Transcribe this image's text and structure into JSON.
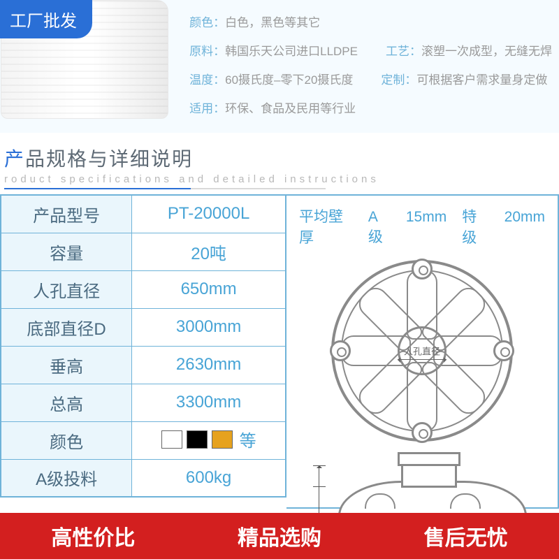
{
  "badge": {
    "text": "工厂批发"
  },
  "props": {
    "color": {
      "label": "颜色",
      "value": "白色，黑色等其它"
    },
    "material": {
      "label": "原料",
      "value": "韩国乐天公司进口LLDPE"
    },
    "process": {
      "label": "工艺",
      "value": "滚塑一次成型，无缝无焊"
    },
    "temp": {
      "label": "温度",
      "value": "60摄氏度–零下20摄氏度"
    },
    "custom": {
      "label": "定制",
      "value": "可根据客户需求量身定做"
    },
    "apply": {
      "label": "适用",
      "value": "环保、食品及民用等行业"
    }
  },
  "section": {
    "cn_prefix": "产",
    "cn_rest": "品规格与详细说明",
    "en": "roduct specifications and detailed instructions"
  },
  "spec": {
    "rows": [
      {
        "k": "产品型号",
        "v": "PT-20000L"
      },
      {
        "k": "容量",
        "v": "20吨"
      },
      {
        "k": "人孔直径",
        "v": "650mm"
      },
      {
        "k": "底部直径D",
        "v": "3000mm"
      },
      {
        "k": "垂高",
        "v": "2630mm"
      },
      {
        "k": "总高",
        "v": "3300mm"
      },
      {
        "k": "颜色",
        "v": "__SWATCHES__",
        "etc": "等"
      },
      {
        "k": "A级投料",
        "v": "600kg"
      }
    ],
    "swatches": [
      "#ffffff",
      "#000000",
      "#e6a21e"
    ]
  },
  "diagram": {
    "thickness_label": "平均壁厚",
    "gradeA_label": "A级",
    "gradeA_val": "15mm",
    "gradeS_label": "特级",
    "gradeS_val": "20mm",
    "manhole_label": "人孔直径"
  },
  "footer": {
    "a": "高性价比",
    "b": "精品选购",
    "c": "售后无忧"
  },
  "colors": {
    "brand_blue": "#2a6fd6",
    "light_blue": "#6fb3d9",
    "value_blue": "#48a4d6",
    "footer_red": "#d31f1f"
  }
}
